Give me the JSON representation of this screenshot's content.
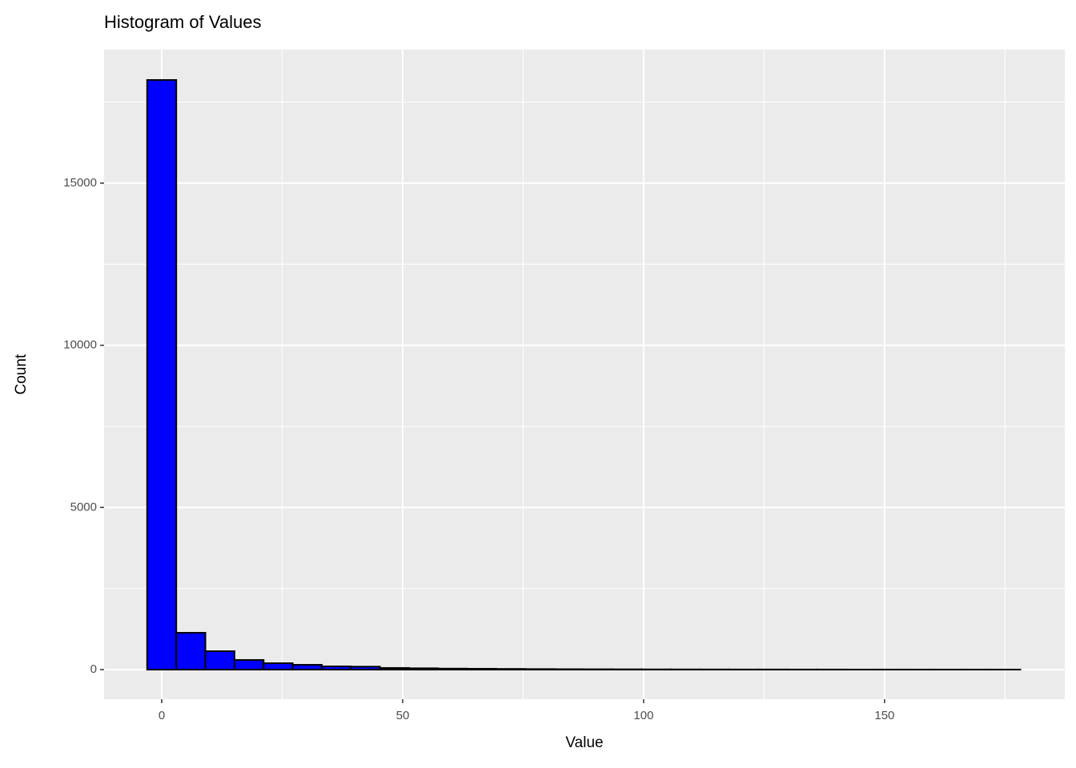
{
  "chart_data": {
    "type": "histogram",
    "title": "Histogram of Values",
    "x_label": "Value",
    "y_label": "Count",
    "bins": [
      -3.02,
      3.02,
      9.06,
      15.1,
      21.14,
      27.18,
      33.22,
      39.26,
      45.3,
      51.34,
      57.38,
      63.42,
      69.46,
      75.5,
      81.54,
      87.58,
      93.62,
      99.66,
      105.7,
      111.74,
      117.78,
      123.82,
      129.86,
      135.9,
      141.94,
      147.98,
      154.02,
      160.06,
      166.1,
      172.14,
      178.18
    ],
    "counts": [
      18180,
      1135,
      567,
      296,
      197,
      148,
      99,
      90,
      50,
      40,
      30,
      25,
      20,
      15,
      12,
      10,
      8,
      6,
      5,
      4,
      3,
      3,
      2,
      2,
      1,
      1,
      1,
      1,
      1,
      1
    ],
    "color": "#0000ff",
    "edge_color": "#000000",
    "xlim": [
      -11.96,
      187.4
    ],
    "xticks": [
      0,
      50,
      100,
      150
    ],
    "ylim": [
      -913,
      19117
    ],
    "yticks": [
      0,
      5000,
      10000,
      15000
    ],
    "grid": true
  }
}
